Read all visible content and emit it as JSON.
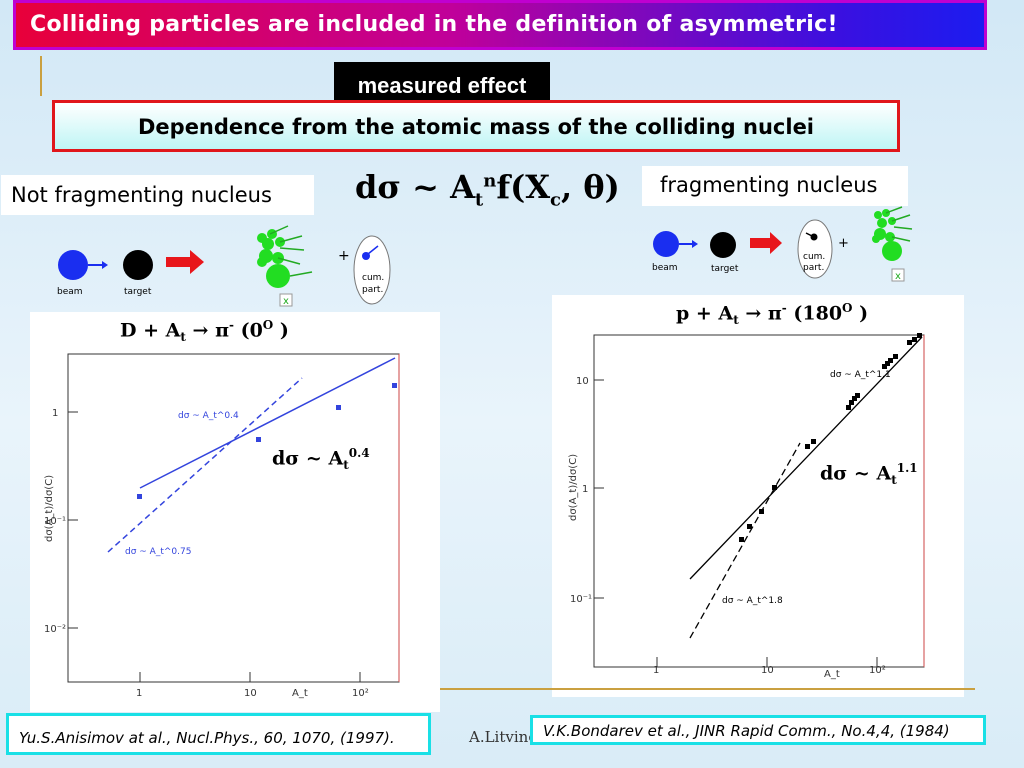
{
  "title": "Colliding particles are included in the definition of asymmetric!",
  "measured_effect": "measured effect",
  "dependence": "Dependence from the atomic mass of the colliding nuclei",
  "not_fragmenting": "Not fragmenting nucleus",
  "fragmenting": "fragmenting nucleus",
  "main_formula": {
    "lhs": "dσ ~ A",
    "sub": "t",
    "sup": "n",
    "rhs": "f(X",
    "sub2": "c",
    "tail": ", θ)"
  },
  "diagram_labels": {
    "beam": "beam",
    "target": "target",
    "cum1": "cum.",
    "cum2": "part.",
    "x": "x",
    "plus": "+"
  },
  "left_plot": {
    "reaction": {
      "a": "D + A",
      "sub": "t",
      "b": " → π",
      "sup": "-",
      "c": " (0",
      "sup2": "O",
      "d": " )"
    },
    "fit_label": {
      "a": "dσ ~ A",
      "sub": "t",
      "sup": "0.4"
    },
    "ylabel": "dσ(A_t)/dσ(C)",
    "xlabel": "A_t",
    "yticks": [
      "1",
      "10⁻¹",
      "10⁻²"
    ],
    "xticks": [
      "1",
      "10",
      "10²"
    ],
    "fit_solid": "dσ ~ A_t^0.4",
    "fit_dashed": "dσ ~ A_t^0.75"
  },
  "right_plot": {
    "reaction": {
      "a": "p + A",
      "sub": "t",
      "b": " → π",
      "sup": "-",
      "c": " (180",
      "sup2": "O",
      "d": " )"
    },
    "fit_label": {
      "a": "dσ ~ A",
      "sub": "t",
      "sup": "1.1"
    },
    "ylabel": "dσ(A_t)/dσ(C)",
    "xlabel": "A_t",
    "yticks": [
      "10",
      "1",
      "10⁻¹"
    ],
    "xticks": [
      "1",
      "10",
      "10²"
    ],
    "fit_solid": "dσ ~ A_t^1.1",
    "fit_dashed": "dσ ~ A_t^1.8"
  },
  "ref_left": "Yu.S.Anisimov at al., Nucl.Phys.,  60, 1070, (1997).",
  "ref_right": "V.K.Bondarev et al., JINR Rapid Comm., No.4,4, (1984)",
  "author": "A.Litvine",
  "colors": {
    "banner_start": "#e8003a",
    "banner_end": "#1c1cf0",
    "frame_red": "#e0161b",
    "cyan": "#19e0e6",
    "plot_blue": "#3344dd",
    "green": "#22dd22"
  }
}
